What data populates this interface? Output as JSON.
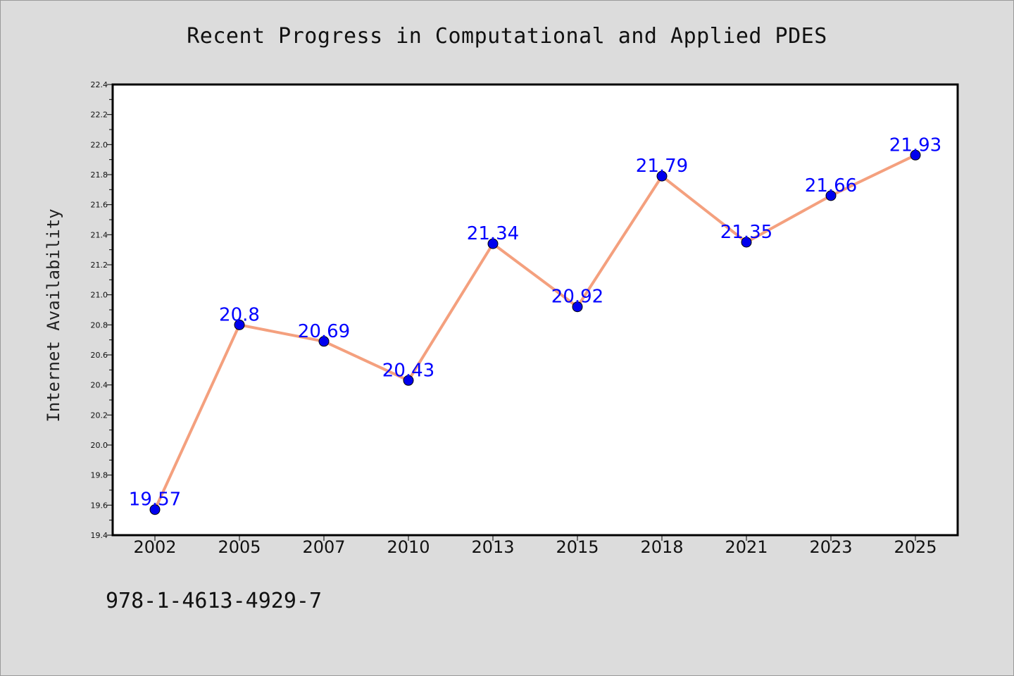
{
  "chart_data": {
    "type": "line",
    "title": "Recent Progress in Computational and Applied PDES",
    "xlabel": "",
    "ylabel": "Internet Availability",
    "categories": [
      "2002",
      "2005",
      "2007",
      "2010",
      "2013",
      "2015",
      "2018",
      "2021",
      "2023",
      "2025"
    ],
    "series": [
      {
        "values": [
          19.57,
          20.8,
          20.69,
          20.43,
          21.34,
          20.92,
          21.79,
          21.35,
          21.66,
          21.93
        ],
        "labels": [
          "19.57",
          "20.8",
          "20.69",
          "20.43",
          "21.34",
          "20.92",
          "21.79",
          "21.35",
          "21.66",
          "21.93"
        ],
        "line_color": "#f4a07e",
        "marker_color": "#0000ee",
        "label_color": "#0000ff"
      }
    ],
    "ylim": [
      19.4,
      22.4
    ],
    "yticks": [
      "19.4",
      "19.6",
      "19.8",
      "20.0",
      "20.2",
      "20.4",
      "20.6",
      "20.8",
      "21.0",
      "21.2",
      "21.4",
      "21.6",
      "21.8",
      "22.0",
      "22.2",
      "22.4"
    ],
    "grid": false,
    "legend": "none"
  },
  "footer": {
    "isbn": "978-1-4613-4929-7"
  },
  "colors": {
    "background": "#dcdcdc",
    "plot_background": "#ffffff"
  }
}
